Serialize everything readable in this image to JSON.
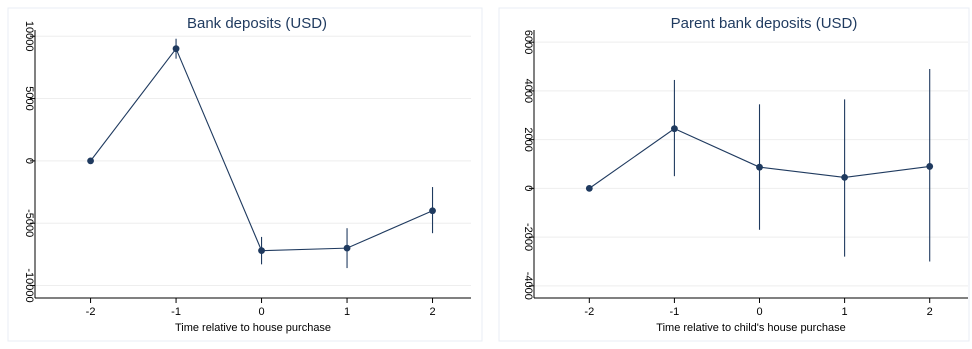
{
  "chart_data": [
    {
      "type": "line",
      "title": "Bank deposits (USD)",
      "xlabel": "Time relative to house purchase",
      "ylabel": "",
      "x": [
        -2,
        -1,
        0,
        1,
        2
      ],
      "xticks": [
        -2,
        -1,
        0,
        1,
        2
      ],
      "yticks": [
        -10000,
        -5000,
        0,
        5000,
        10000
      ],
      "xlim": [
        -2.65,
        2.45
      ],
      "ylim": [
        -11000,
        10500
      ],
      "grid": true,
      "series": [
        {
          "values": [
            0,
            9000,
            -7200,
            -7000,
            -4000
          ],
          "ci_low": [
            0,
            8200,
            -8300,
            -8600,
            -5800
          ],
          "ci_high": [
            0,
            9800,
            -6100,
            -5400,
            -2100
          ]
        }
      ]
    },
    {
      "type": "line",
      "title": "Parent bank deposits (USD)",
      "xlabel": "Time relative to child's house purchase",
      "ylabel": "",
      "x": [
        -2,
        -1,
        0,
        1,
        2
      ],
      "xticks": [
        -2,
        -1,
        0,
        1,
        2
      ],
      "yticks": [
        -4000,
        -2000,
        0,
        2000,
        4000,
        6000
      ],
      "xlim": [
        -2.65,
        2.45
      ],
      "ylim": [
        -4500,
        6500
      ],
      "grid": true,
      "series": [
        {
          "values": [
            0,
            2450,
            870,
            450,
            900
          ],
          "ci_low": [
            0,
            500,
            -1700,
            -2800,
            -3000
          ],
          "ci_high": [
            0,
            4450,
            3450,
            3650,
            4900
          ]
        }
      ]
    }
  ],
  "colors": {
    "series": "#1f3a5f",
    "title": "#1f3a5f",
    "grid": "#eeeeee"
  }
}
